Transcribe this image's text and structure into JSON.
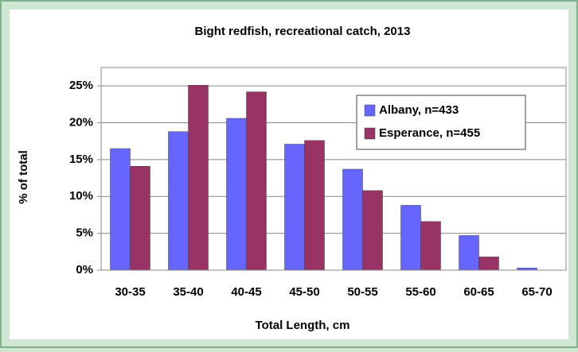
{
  "chart_data": {
    "type": "bar",
    "title": "Bight redfish, recreational catch, 2013",
    "x_label": "Total Length, cm",
    "y_label": "% of total",
    "categories": [
      "30-35",
      "35-40",
      "40-45",
      "45-50",
      "50-55",
      "55-60",
      "60-65",
      "65-70"
    ],
    "series": [
      {
        "name": "Albany, n=433",
        "color": "#6666ff",
        "values": [
          16.5,
          18.8,
          20.6,
          17.1,
          13.7,
          8.8,
          4.7,
          0.3
        ]
      },
      {
        "name": "Esperance, n=455",
        "color": "#993366",
        "values": [
          14.1,
          25.1,
          24.2,
          17.6,
          10.8,
          6.6,
          1.8,
          0
        ]
      }
    ],
    "ylim": [
      0,
      27.5
    ],
    "yticks": [
      {
        "value": 0,
        "label": "0%"
      },
      {
        "value": 5,
        "label": "5%"
      },
      {
        "value": 10,
        "label": "10%"
      },
      {
        "value": 15,
        "label": "15%"
      },
      {
        "value": 20,
        "label": "20%"
      },
      {
        "value": 25,
        "label": "25%"
      }
    ],
    "grid": true,
    "legend": "upper right"
  }
}
